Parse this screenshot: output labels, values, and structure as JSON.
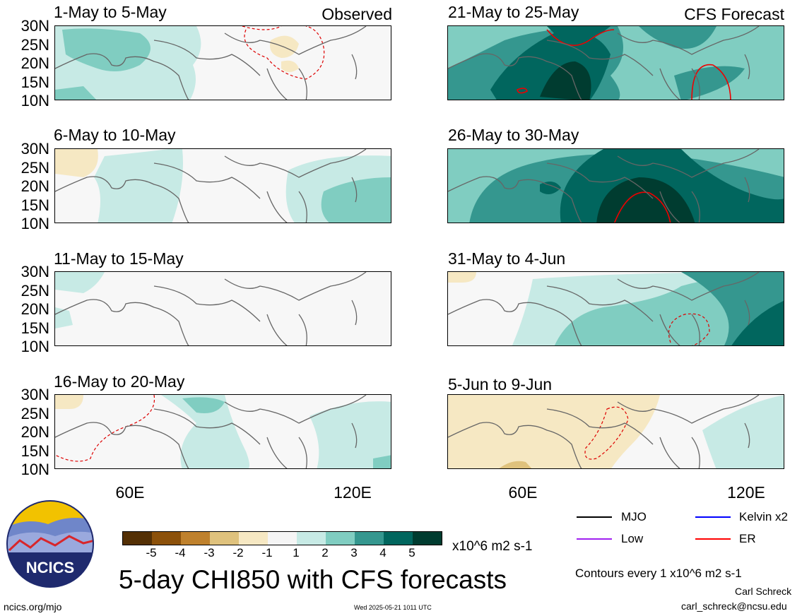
{
  "header": {
    "observed_label": "Observed",
    "forecast_label": "CFS Forecast"
  },
  "lat_labels": [
    "30N",
    "25N",
    "20N",
    "15N",
    "10N"
  ],
  "lon_labels": [
    "60E",
    "120E"
  ],
  "panels": [
    {
      "title": "1-May to 5-May"
    },
    {
      "title": "6-May to 10-May"
    },
    {
      "title": "11-May to 15-May"
    },
    {
      "title": "16-May to 20-May"
    },
    {
      "title": "21-May to 25-May"
    },
    {
      "title": "26-May to 30-May"
    },
    {
      "title": "31-May to 4-Jun"
    },
    {
      "title": "5-Jun to 9-Jun"
    }
  ],
  "colorbar": {
    "labels": [
      "-5",
      "-4",
      "-3",
      "-2",
      "-1",
      "1",
      "2",
      "3",
      "4",
      "5"
    ],
    "units": "x10^6 m2 s-1",
    "colors": [
      "#543005",
      "#8c510a",
      "#bf812d",
      "#dfc27d",
      "#f6e8c3",
      "#f5f5f5",
      "#c7eae5",
      "#80cdc1",
      "#35978f",
      "#01665e",
      "#003c30"
    ]
  },
  "legend": {
    "items": [
      {
        "label": "MJO",
        "color": "#000000"
      },
      {
        "label": "Kelvin x2",
        "color": "#0000ff"
      },
      {
        "label": "Low",
        "color": "#a020f0"
      },
      {
        "label": "ER",
        "color": "#ff0000"
      }
    ],
    "contour_note": "Contours every 1 x10^6 m2 s-1"
  },
  "footer": {
    "main_title": "5-day CHI850 with CFS forecasts",
    "website": "ncics.org/mjo",
    "timestamp": "Wed 2025-05-21 1011 UTC",
    "author": "Carl Schreck",
    "email": "carl_schreck@ncsu.edu",
    "logo_text": "NCICS"
  }
}
